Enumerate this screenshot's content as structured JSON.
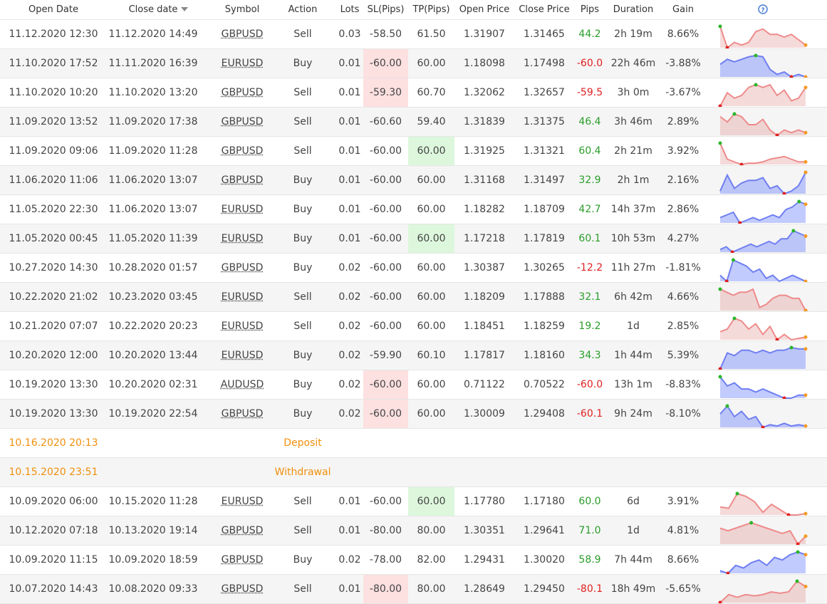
{
  "table": {
    "header": [
      "Open Date",
      "Close date",
      "Symbol",
      "Action",
      "Lots",
      "SL(Pips)",
      "TP(Pips)",
      "Open Price",
      "Close Price",
      "Pips",
      "Duration",
      "Gain"
    ],
    "rows": [
      {
        "cells": [
          "11.12.2020 12:30",
          "11.12.2020 14:49",
          "GBPUSD",
          "Sell",
          "0.03",
          "-58.50",
          "61.50",
          "1.31907",
          "1.31465",
          "44.2",
          "2h 19m",
          "8.66%"
        ],
        "spark": {
          "color": "red",
          "values": [
            9,
            1,
            3,
            2,
            3,
            7,
            8,
            6,
            6,
            5,
            6,
            4,
            2
          ]
        }
      },
      {
        "cells": [
          "11.10.2020 17:52",
          "11.11.2020 16:39",
          "EURUSD",
          "Buy",
          "0.01",
          "-60.00",
          "60.00",
          "1.18098",
          "1.17498",
          "-60.0",
          "22h 46m",
          "-3.88%"
        ],
        "highlight": "sl",
        "spark": {
          "color": "blue",
          "values": [
            6,
            8,
            7,
            8,
            9,
            9.5,
            9,
            4,
            2,
            3,
            1,
            2,
            1
          ]
        }
      },
      {
        "cells": [
          "11.10.2020 10:20",
          "11.10.2020 13:20",
          "GBPUSD",
          "Sell",
          "0.01",
          "-59.30",
          "60.70",
          "1.32062",
          "1.32657",
          "-59.5",
          "3h 0m",
          "-3.67%"
        ],
        "highlight": "sl",
        "spark": {
          "color": "red",
          "values": [
            1,
            6,
            4,
            5,
            8,
            9,
            8,
            9,
            5,
            7,
            3,
            4,
            8
          ]
        }
      },
      {
        "cells": [
          "11.09.2020 13:52",
          "11.09.2020 17:38",
          "GBPUSD",
          "Sell",
          "0.01",
          "-60.60",
          "59.40",
          "1.31839",
          "1.31375",
          "46.4",
          "3h 46m",
          "2.89%"
        ],
        "spark": {
          "color": "red",
          "values": [
            8,
            6,
            9,
            8,
            5,
            5,
            7,
            3,
            1,
            3,
            2,
            3,
            2
          ]
        }
      },
      {
        "cells": [
          "11.09.2020 09:06",
          "11.09.2020 11:28",
          "GBPUSD",
          "Sell",
          "0.01",
          "-60.00",
          "60.00",
          "1.31925",
          "1.31321",
          "60.4",
          "2h 21m",
          "3.92%"
        ],
        "highlight": "tp",
        "spark": {
          "color": "red",
          "values": [
            9,
            3,
            2,
            1,
            1.5,
            1.5,
            2,
            3,
            3.5,
            4,
            3,
            2,
            2
          ]
        }
      },
      {
        "cells": [
          "11.06.2020 11:06",
          "11.06.2020 13:07",
          "GBPUSD",
          "Buy",
          "0.01",
          "-60.00",
          "60.00",
          "1.31168",
          "1.31497",
          "32.9",
          "2h 1m",
          "2.16%"
        ],
        "spark": {
          "color": "blue",
          "values": [
            2,
            8,
            3,
            5,
            6,
            6,
            7,
            3,
            4,
            1,
            2,
            4,
            9
          ]
        }
      },
      {
        "cells": [
          "11.05.2020 22:30",
          "11.06.2020 13:07",
          "EURUSD",
          "Buy",
          "0.01",
          "-60.00",
          "60.00",
          "1.18282",
          "1.18709",
          "42.7",
          "14h 37m",
          "2.86%"
        ],
        "spark": {
          "color": "blue",
          "values": [
            3,
            4,
            5,
            1,
            2,
            3,
            2,
            3,
            4,
            3,
            6,
            7,
            9,
            8
          ]
        }
      },
      {
        "cells": [
          "11.05.2020 00:45",
          "11.05.2020 11:39",
          "EURUSD",
          "Buy",
          "0.01",
          "-60.00",
          "60.00",
          "1.17218",
          "1.17819",
          "60.1",
          "10h 53m",
          "4.27%"
        ],
        "highlight": "tp",
        "spark": {
          "color": "blue",
          "values": [
            2,
            3,
            1,
            2,
            3,
            4,
            3,
            4,
            5,
            4,
            6,
            6,
            9,
            8,
            7
          ]
        }
      },
      {
        "cells": [
          "10.27.2020 14:30",
          "10.28.2020 01:57",
          "GBPUSD",
          "Buy",
          "0.02",
          "-60.00",
          "60.00",
          "1.30387",
          "1.30265",
          "-12.2",
          "11h 27m",
          "-1.81%"
        ],
        "spark": {
          "color": "blue",
          "values": [
            4,
            2,
            9,
            8,
            7,
            5,
            6,
            3,
            4,
            2,
            3,
            4,
            3,
            2
          ]
        }
      },
      {
        "cells": [
          "10.22.2020 21:02",
          "10.23.2020 03:45",
          "EURUSD",
          "Sell",
          "0.02",
          "-60.00",
          "60.00",
          "1.18209",
          "1.17888",
          "32.1",
          "6h 42m",
          "4.66%"
        ],
        "spark": {
          "color": "red",
          "values": [
            8,
            7,
            6,
            7,
            7,
            8,
            2,
            3,
            5,
            6,
            6,
            5,
            5,
            1
          ]
        }
      },
      {
        "cells": [
          "10.21.2020 07:07",
          "10.22.2020 20:23",
          "EURUSD",
          "Sell",
          "0.02",
          "-60.00",
          "60.00",
          "1.18451",
          "1.18259",
          "19.2",
          "1d",
          "2.85%"
        ],
        "spark": {
          "color": "red",
          "values": [
            4,
            5,
            9,
            8,
            5,
            7,
            3,
            6,
            1,
            3,
            1,
            1.5,
            2
          ]
        }
      },
      {
        "cells": [
          "10.20.2020 12:00",
          "10.20.2020 13:44",
          "EURUSD",
          "Buy",
          "0.02",
          "-59.90",
          "60.10",
          "1.17817",
          "1.18160",
          "34.3",
          "1h 44m",
          "5.39%"
        ],
        "spark": {
          "color": "blue",
          "values": [
            1,
            7,
            6,
            8,
            8,
            7,
            8,
            7,
            8,
            8,
            9,
            8.5,
            8.5
          ]
        }
      },
      {
        "cells": [
          "10.19.2020 13:30",
          "10.20.2020 02:31",
          "AUDUSD",
          "Buy",
          "0.02",
          "-60.00",
          "60.00",
          "0.71122",
          "0.70522",
          "-60.0",
          "13h 1m",
          "-8.83%"
        ],
        "highlight": "sl",
        "spark": {
          "color": "blue",
          "values": [
            9,
            6,
            7,
            5,
            5,
            4,
            5,
            4,
            3,
            2,
            2,
            3,
            3
          ]
        }
      },
      {
        "cells": [
          "10.19.2020 13:30",
          "10.19.2020 22:54",
          "GBPUSD",
          "Buy",
          "0.02",
          "-60.00",
          "60.00",
          "1.30009",
          "1.29408",
          "-60.1",
          "9h 24m",
          "-8.10%"
        ],
        "highlight": "sl",
        "spark": {
          "color": "blue",
          "values": [
            6,
            9,
            5,
            7,
            4,
            5,
            1,
            2,
            1.5,
            2.5,
            1.5,
            2,
            1.5
          ]
        }
      },
      {
        "date": "10.16.2020 20:13",
        "label": "Deposit"
      },
      {
        "date": "10.15.2020 23:51",
        "label": "Withdrawal"
      },
      {
        "cells": [
          "10.09.2020 06:00",
          "10.15.2020 11:28",
          "EURUSD",
          "Sell",
          "0.01",
          "-60.00",
          "60.00",
          "1.17780",
          "1.17180",
          "60.0",
          "6d",
          "3.91%"
        ],
        "highlight": "tp",
        "spark": {
          "color": "red",
          "values": [
            4,
            3.5,
            9,
            8,
            6,
            2,
            5,
            3,
            1,
            1,
            1.5
          ]
        }
      },
      {
        "cells": [
          "10.12.2020 07:18",
          "10.13.2020 19:14",
          "GBPUSD",
          "Sell",
          "0.01",
          "-80.00",
          "80.00",
          "1.30351",
          "1.29641",
          "71.0",
          "1d",
          "4.81%"
        ],
        "spark": {
          "color": "red",
          "values": [
            7,
            6,
            7,
            8,
            9,
            8,
            7,
            6,
            5,
            6,
            1,
            4
          ]
        }
      },
      {
        "cells": [
          "10.09.2020 11:15",
          "10.09.2020 18:59",
          "GBPUSD",
          "Buy",
          "0.02",
          "-78.00",
          "82.00",
          "1.29431",
          "1.30020",
          "58.9",
          "7h 44m",
          "8.66%"
        ],
        "spark": {
          "color": "blue",
          "values": [
            2,
            1,
            4,
            3,
            5,
            6,
            4,
            7,
            6,
            8,
            9,
            8
          ]
        }
      },
      {
        "cells": [
          "10.07.2020 14:43",
          "10.08.2020 09:33",
          "GBPUSD",
          "Sell",
          "0.01",
          "-80.00",
          "80.00",
          "1.28649",
          "1.29450",
          "-80.1",
          "18h 49m",
          "-5.65%"
        ],
        "highlight": "sl",
        "spark": {
          "color": "red",
          "values": [
            1,
            4,
            3,
            4,
            3.5,
            4,
            5,
            4.5,
            5,
            9,
            7
          ]
        }
      }
    ]
  }
}
